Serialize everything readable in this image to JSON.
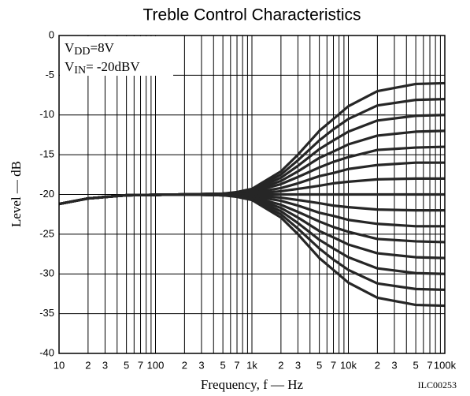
{
  "chart_data": {
    "type": "line",
    "title": "Treble Control Characteristics",
    "xlabel": "Frequency, f — Hz",
    "ylabel": "Level — dB",
    "annotations": [
      {
        "main": "V",
        "sub": "DD",
        "rest": "=8V"
      },
      {
        "main": "V",
        "sub": "IN",
        "rest": "= -20dBV"
      }
    ],
    "code": "ILC00253",
    "xscale": "log",
    "grid": true,
    "xlim": [
      10,
      100000
    ],
    "ylim": [
      -40,
      0
    ],
    "yticks": [
      0,
      -5,
      -10,
      -15,
      -20,
      -25,
      -30,
      -35,
      -40
    ],
    "xticks": [
      10,
      {
        "value": 20,
        "label": "2"
      },
      {
        "value": 30,
        "label": "3"
      },
      {
        "value": 50,
        "label": "5"
      },
      {
        "value": 70,
        "label": "7"
      },
      100,
      {
        "value": 200,
        "label": "2"
      },
      {
        "value": 300,
        "label": "3"
      },
      {
        "value": 500,
        "label": "5"
      },
      {
        "value": 700,
        "label": "7"
      },
      {
        "value": 1000,
        "label": "1k"
      },
      {
        "value": 2000,
        "label": "2"
      },
      {
        "value": 3000,
        "label": "3"
      },
      {
        "value": 5000,
        "label": "5"
      },
      {
        "value": 7000,
        "label": "7"
      },
      {
        "value": 10000,
        "label": "10k"
      },
      {
        "value": 20000,
        "label": "2"
      },
      {
        "value": 30000,
        "label": "3"
      },
      {
        "value": 50000,
        "label": "5"
      },
      {
        "value": 70000,
        "label": "7"
      },
      {
        "value": 100000,
        "label": "100k"
      }
    ],
    "xminor": [
      40,
      60,
      80,
      90,
      400,
      600,
      800,
      900,
      4000,
      6000,
      8000,
      9000,
      40000,
      60000,
      80000,
      90000
    ],
    "x": [
      10,
      20,
      50,
      200,
      500,
      700,
      1000,
      2000,
      3000,
      5000,
      7000,
      10000,
      20000,
      50000,
      100000
    ],
    "color": "#262626",
    "series": [
      {
        "values": [
          -21.2,
          -20.5,
          -20.1,
          -20,
          -19.9,
          -19.7,
          -19.3,
          -17.1,
          -15.0,
          -12.0,
          -10.5,
          -8.9,
          -7.0,
          -6.1,
          -6
        ]
      },
      {
        "values": [
          -21.2,
          -20.5,
          -20.1,
          -20,
          -19.9,
          -19.8,
          -19.4,
          -17.5,
          -15.7,
          -13.2,
          -11.8,
          -10.5,
          -8.8,
          -8.1,
          -8
        ]
      },
      {
        "values": [
          -21.2,
          -20.5,
          -20.1,
          -20,
          -19.9,
          -19.8,
          -19.5,
          -17.9,
          -16.4,
          -14.3,
          -13.2,
          -12.1,
          -10.7,
          -10.1,
          -10
        ]
      },
      {
        "values": [
          -21.2,
          -20.5,
          -20.1,
          -20,
          -19.9,
          -19.8,
          -19.6,
          -18.3,
          -17.1,
          -15.4,
          -14.6,
          -13.7,
          -12.6,
          -12.1,
          -12
        ]
      },
      {
        "values": [
          -21.2,
          -20.5,
          -20.1,
          -20,
          -19.9,
          -19.9,
          -19.7,
          -18.7,
          -17.8,
          -16.6,
          -15.9,
          -15.3,
          -14.4,
          -14.1,
          -14
        ]
      },
      {
        "values": [
          -21.2,
          -20.5,
          -20.1,
          -20,
          -20,
          -19.9,
          -19.8,
          -19.2,
          -18.6,
          -17.7,
          -17.3,
          -16.8,
          -16.3,
          -16.0,
          -16
        ]
      },
      {
        "values": [
          -21.2,
          -20.5,
          -20.1,
          -20,
          -20,
          -20,
          -19.9,
          -19.6,
          -19.3,
          -18.9,
          -18.6,
          -18.4,
          -18.1,
          -18.0,
          -18
        ]
      },
      {
        "values": [
          -21.2,
          -20.5,
          -20.1,
          -20,
          -20,
          -20,
          -20,
          -20,
          -20,
          -20,
          -20,
          -20,
          -20,
          -20,
          -20
        ]
      },
      {
        "values": [
          -21.2,
          -20.5,
          -20.1,
          -20,
          -20,
          -20,
          -20.1,
          -20.4,
          -20.7,
          -21.1,
          -21.4,
          -21.6,
          -21.9,
          -22.0,
          -22
        ]
      },
      {
        "values": [
          -21.2,
          -20.5,
          -20.1,
          -20,
          -20,
          -20.1,
          -20.2,
          -20.8,
          -21.4,
          -22.3,
          -22.7,
          -23.2,
          -23.7,
          -24.0,
          -24
        ]
      },
      {
        "values": [
          -21.2,
          -20.5,
          -20.1,
          -20,
          -20.1,
          -20.1,
          -20.3,
          -21.3,
          -22.2,
          -23.4,
          -24.1,
          -24.7,
          -25.6,
          -25.9,
          -26
        ]
      },
      {
        "values": [
          -21.2,
          -20.5,
          -20.1,
          -20,
          -20.1,
          -20.2,
          -20.4,
          -21.7,
          -22.9,
          -24.6,
          -25.4,
          -26.3,
          -27.4,
          -27.9,
          -28
        ]
      },
      {
        "values": [
          -21.2,
          -20.5,
          -20.1,
          -20,
          -20.1,
          -20.2,
          -20.5,
          -22.1,
          -23.6,
          -25.7,
          -26.8,
          -27.9,
          -29.3,
          -29.9,
          -30
        ]
      },
      {
        "values": [
          -21.2,
          -20.5,
          -20.1,
          -20,
          -20.1,
          -20.2,
          -20.6,
          -22.5,
          -24.3,
          -26.8,
          -28.2,
          -29.5,
          -31.2,
          -31.9,
          -32
        ]
      },
      {
        "values": [
          -21.2,
          -20.5,
          -20.1,
          -20,
          -20.1,
          -20.3,
          -20.7,
          -22.9,
          -25.0,
          -28.0,
          -29.5,
          -31.1,
          -33.0,
          -33.9,
          -34
        ]
      }
    ]
  }
}
